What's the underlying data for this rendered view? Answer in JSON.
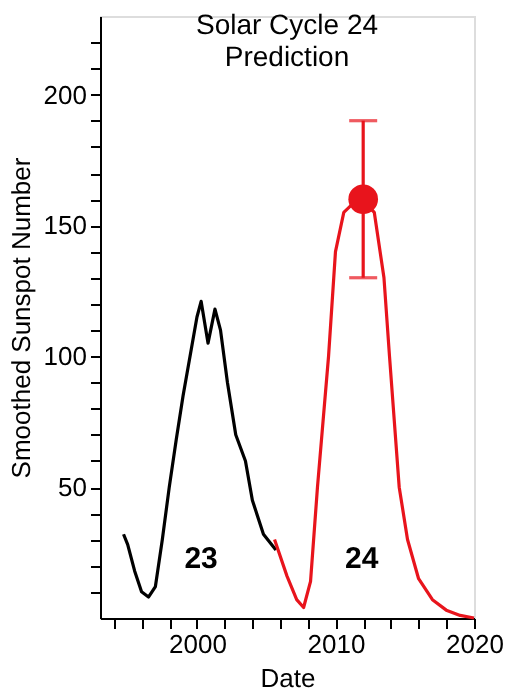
{
  "chart_data": {
    "type": "line",
    "title": [
      "Solar Cycle 24",
      "Prediction"
    ],
    "xlabel": "Date",
    "ylabel": "Smoothed Sunspot Number",
    "xlim": [
      1993,
      2020
    ],
    "xticks": [
      {
        "value": 1994,
        "label": null
      },
      {
        "value": 1996,
        "label": null
      },
      {
        "value": 1998,
        "label": null
      },
      2000,
      {
        "value": 2002,
        "label": null
      },
      {
        "value": 2004,
        "label": null
      },
      {
        "value": 2006,
        "label": null
      },
      {
        "value": 2008,
        "label": null
      },
      2010,
      {
        "value": 2012,
        "label": null
      },
      {
        "value": 2014,
        "label": null
      },
      {
        "value": 2016,
        "label": null
      },
      {
        "value": 2018,
        "label": null
      },
      2020
    ],
    "ylim": [
      0,
      230
    ],
    "yticks": [
      {
        "value": 10,
        "label": null
      },
      {
        "value": 20,
        "label": null
      },
      {
        "value": 30,
        "label": null
      },
      {
        "value": 40,
        "label": null
      },
      50,
      {
        "value": 60,
        "label": null
      },
      {
        "value": 70,
        "label": null
      },
      {
        "value": 80,
        "label": null
      },
      {
        "value": 90,
        "label": null
      },
      100,
      {
        "value": 110,
        "label": null
      },
      {
        "value": 120,
        "label": null
      },
      {
        "value": 130,
        "label": null
      },
      {
        "value": 140,
        "label": null
      },
      150,
      {
        "value": 160,
        "label": null
      },
      {
        "value": 170,
        "label": null
      },
      {
        "value": 180,
        "label": null
      },
      {
        "value": 190,
        "label": null
      },
      200,
      {
        "value": 210,
        "label": null
      },
      {
        "value": 220,
        "label": null
      }
    ],
    "grid": false,
    "marker": "none",
    "line_style": "solid",
    "series": [
      {
        "type": "line",
        "color": "#000000",
        "x": [
          1994.7,
          1995,
          1995.5,
          1996,
          1996.5,
          1997,
          1997.5,
          1998,
          1998.5,
          1999,
          1999.5,
          2000,
          2000.3,
          2000.8,
          2001.3,
          2001.7,
          2002.2,
          2002.8,
          2003.5,
          2004,
          2004.8,
          2005.7
        ],
        "values": [
          32,
          28,
          18,
          10,
          8,
          12,
          30,
          50,
          68,
          85,
          100,
          115,
          121,
          105,
          118,
          110,
          90,
          70,
          60,
          45,
          32,
          26
        ]
      },
      {
        "type": "line",
        "color": "#e8141c",
        "x": [
          2005.6,
          2006.5,
          2007.2,
          2007.7,
          2008.2,
          2008.7,
          2009.1,
          2009.5,
          2010,
          2010.6,
          2011.2,
          2011.9,
          2012.8,
          2013.5,
          2013.9,
          2014.6,
          2015.2,
          2016,
          2017,
          2018,
          2019,
          2020
        ],
        "values": [
          30,
          16,
          7,
          4,
          14,
          50,
          75,
          100,
          140,
          155,
          158,
          160,
          155,
          130,
          100,
          50,
          30,
          15,
          7,
          3,
          1,
          0
        ]
      },
      {
        "type": "scatter",
        "color": "#e8141c",
        "marker": "circle",
        "x": [
          2012
        ],
        "values": [
          160
        ],
        "errors": [
          [
            130,
            190
          ]
        ]
      }
    ],
    "annotations": [
      "23",
      "24"
    ]
  }
}
